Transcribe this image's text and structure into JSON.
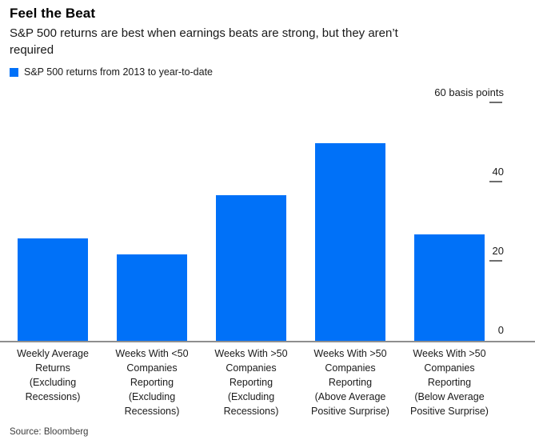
{
  "header": {
    "title": "Feel the Beat",
    "subtitle": "S&P 500 returns are best when earnings beats are strong, but they aren’t\nrequired"
  },
  "legend": {
    "label": "S&P 500 returns from 2013 to year-to-date",
    "swatch_color": "#0071f8"
  },
  "footer": {
    "source": "Source: Bloomberg"
  },
  "chart_data": {
    "type": "bar",
    "title": "Feel the Beat",
    "subtitle": "S&P 500 returns are best when earnings beats are strong, but they aren’t required",
    "unit": "basis points",
    "series": [
      {
        "name": "S&P 500 returns from 2013 to year-to-date",
        "values": [
          26,
          22,
          37,
          50,
          27
        ]
      }
    ],
    "categories": [
      "Weekly Average Returns (Excluding Recessions)",
      "Weeks With <50 Companies Reporting (Excluding Recessions)",
      "Weeks With >50 Companies Reporting (Excluding Recessions)",
      "Weeks With >50 Companies Reporting (Above Average Positive Surprise)",
      "Weeks With >50 Companies Reporting (Below Average Positive Surprise)"
    ],
    "categories_multiline": [
      "Weekly Average\nReturns\n(Excluding\nRecessions)",
      "Weeks With <50\nCompanies\nReporting\n(Excluding\nRecessions)",
      "Weeks With >50\nCompanies\nReporting\n(Excluding\nRecessions)",
      "Weeks With >50\nCompanies\nReporting\n(Above Average\nPositive Surprise)",
      "Weeks With >50\nCompanies\nReporting\n(Below Average\nPositive Surprise)"
    ],
    "xlabel": "",
    "ylabel": "basis points",
    "ylim": [
      0,
      60
    ],
    "yticks": [
      {
        "value": 60,
        "label": "60 basis points"
      },
      {
        "value": 40,
        "label": "40"
      },
      {
        "value": 20,
        "label": "20"
      },
      {
        "value": 0,
        "label": "0"
      }
    ],
    "bar_color": "#0071f8",
    "grid": false,
    "legend_position": "top-left",
    "axis_side": "right"
  }
}
